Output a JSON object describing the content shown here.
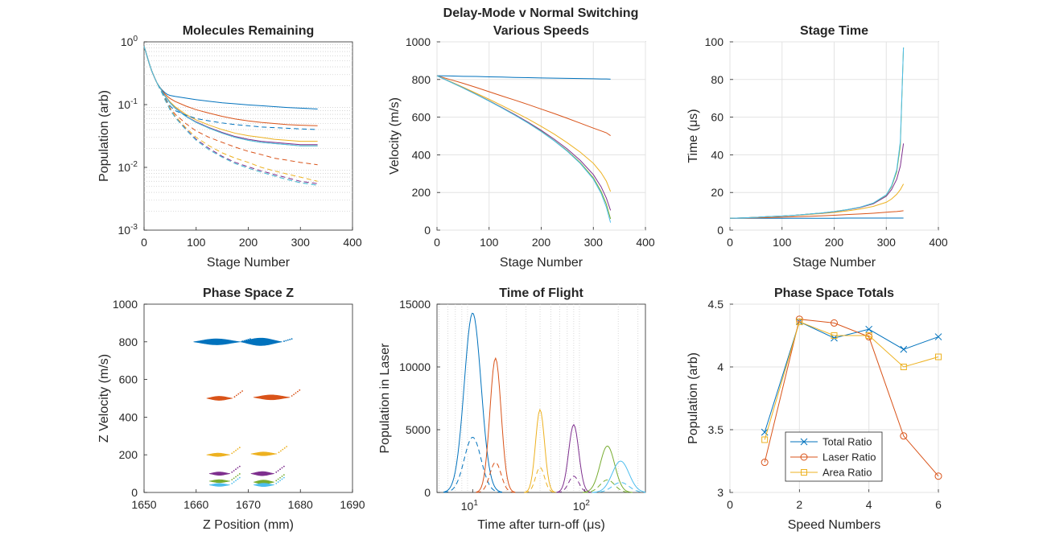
{
  "figure": {
    "suptitle_line1": "Delay-Mode v Normal Switching",
    "suptitle_line2": "Various Speeds"
  },
  "colors": [
    "#0072BD",
    "#D95319",
    "#EDB120",
    "#7E2F8E",
    "#77AC30",
    "#4DBEEE"
  ],
  "chart_data": [
    {
      "id": "molecules",
      "type": "line",
      "title": "Molecules Remaining",
      "xlabel": "Stage Number",
      "ylabel": "Population (arb)",
      "xlim": [
        0,
        400
      ],
      "ylim": [
        0.001,
        1
      ],
      "yscale": "log",
      "grid": "minor-y",
      "xticks": [
        "0",
        "100",
        "200",
        "300",
        "400"
      ],
      "yticks": [
        "10^0",
        "10^-1",
        "10^-2",
        "10^-3"
      ],
      "stage": [
        0,
        5,
        10,
        15,
        20,
        25,
        30,
        35,
        40,
        45,
        50,
        60,
        80,
        100,
        125,
        150,
        175,
        200,
        225,
        250,
        275,
        300,
        333
      ],
      "series": [
        {
          "style": "solid",
          "values": [
            0.85,
            0.62,
            0.45,
            0.34,
            0.27,
            0.22,
            0.19,
            0.17,
            0.155,
            0.145,
            0.14,
            0.135,
            0.127,
            0.12,
            0.113,
            0.107,
            0.103,
            0.099,
            0.096,
            0.093,
            0.09,
            0.088,
            0.085
          ]
        },
        {
          "style": "solid",
          "values": [
            0.85,
            0.62,
            0.45,
            0.34,
            0.27,
            0.22,
            0.19,
            0.165,
            0.148,
            0.135,
            0.125,
            0.112,
            0.095,
            0.083,
            0.073,
            0.065,
            0.059,
            0.055,
            0.052,
            0.05,
            0.048,
            0.047,
            0.046
          ]
        },
        {
          "style": "solid",
          "values": [
            0.85,
            0.62,
            0.45,
            0.34,
            0.27,
            0.22,
            0.19,
            0.16,
            0.14,
            0.125,
            0.11,
            0.092,
            0.07,
            0.057,
            0.047,
            0.04,
            0.035,
            0.032,
            0.03,
            0.028,
            0.027,
            0.026,
            0.026
          ]
        },
        {
          "style": "solid",
          "values": [
            0.85,
            0.62,
            0.45,
            0.34,
            0.27,
            0.22,
            0.19,
            0.16,
            0.138,
            0.122,
            0.107,
            0.088,
            0.066,
            0.053,
            0.043,
            0.036,
            0.031,
            0.028,
            0.026,
            0.025,
            0.024,
            0.023,
            0.023
          ]
        },
        {
          "style": "solid",
          "values": [
            0.85,
            0.62,
            0.45,
            0.34,
            0.27,
            0.22,
            0.19,
            0.16,
            0.137,
            0.121,
            0.106,
            0.087,
            0.065,
            0.052,
            0.042,
            0.035,
            0.03,
            0.027,
            0.025,
            0.024,
            0.023,
            0.022,
            0.022
          ]
        },
        {
          "style": "solid",
          "values": [
            0.85,
            0.62,
            0.45,
            0.34,
            0.27,
            0.22,
            0.19,
            0.16,
            0.137,
            0.121,
            0.106,
            0.087,
            0.065,
            0.052,
            0.042,
            0.035,
            0.03,
            0.027,
            0.025,
            0.024,
            0.023,
            0.022,
            0.022
          ]
        },
        {
          "style": "dashed",
          "values": [
            0.85,
            0.62,
            0.45,
            0.34,
            0.27,
            0.22,
            0.185,
            0.155,
            0.13,
            0.11,
            0.095,
            0.08,
            0.068,
            0.06,
            0.055,
            0.051,
            0.048,
            0.046,
            0.044,
            0.043,
            0.042,
            0.041,
            0.04
          ]
        },
        {
          "style": "dashed",
          "values": [
            0.85,
            0.62,
            0.45,
            0.34,
            0.27,
            0.22,
            0.18,
            0.15,
            0.125,
            0.105,
            0.088,
            0.07,
            0.05,
            0.038,
            0.03,
            0.025,
            0.021,
            0.018,
            0.016,
            0.014,
            0.013,
            0.012,
            0.011
          ]
        },
        {
          "style": "dashed",
          "values": [
            0.85,
            0.62,
            0.45,
            0.34,
            0.27,
            0.22,
            0.18,
            0.15,
            0.122,
            0.102,
            0.085,
            0.065,
            0.043,
            0.03,
            0.022,
            0.017,
            0.014,
            0.012,
            0.01,
            0.0088,
            0.0078,
            0.007,
            0.006
          ]
        },
        {
          "style": "dashed",
          "values": [
            0.85,
            0.62,
            0.45,
            0.34,
            0.27,
            0.22,
            0.18,
            0.15,
            0.12,
            0.1,
            0.083,
            0.063,
            0.041,
            0.028,
            0.02,
            0.015,
            0.012,
            0.0102,
            0.0088,
            0.0077,
            0.0068,
            0.006,
            0.0055
          ]
        },
        {
          "style": "dashed",
          "values": [
            0.85,
            0.62,
            0.45,
            0.34,
            0.27,
            0.22,
            0.18,
            0.15,
            0.12,
            0.1,
            0.082,
            0.062,
            0.04,
            0.027,
            0.019,
            0.0145,
            0.0115,
            0.0097,
            0.0084,
            0.0073,
            0.0064,
            0.0057,
            0.0052
          ]
        },
        {
          "style": "dashed",
          "values": [
            0.85,
            0.62,
            0.45,
            0.34,
            0.27,
            0.22,
            0.18,
            0.15,
            0.12,
            0.1,
            0.082,
            0.062,
            0.04,
            0.027,
            0.019,
            0.0145,
            0.0115,
            0.0097,
            0.0084,
            0.0073,
            0.0064,
            0.0057,
            0.0052
          ]
        }
      ]
    },
    {
      "id": "velocity",
      "type": "line",
      "title": "Delay-Mode v Normal Switching",
      "xlabel": "Stage Number",
      "ylabel": "Velocity (m/s)",
      "xlim": [
        0,
        400
      ],
      "ylim": [
        0,
        1000
      ],
      "grid": true,
      "xticks": [
        0,
        100,
        200,
        300,
        400
      ],
      "yticks": [
        0,
        200,
        400,
        600,
        800,
        1000
      ],
      "stage": [
        0,
        25,
        50,
        75,
        100,
        125,
        150,
        175,
        200,
        225,
        250,
        275,
        300,
        315,
        325,
        333
      ],
      "series": [
        {
          "values": [
            820,
            819,
            817,
            816,
            814,
            813,
            811,
            810,
            808,
            807,
            806,
            805,
            804,
            803,
            803,
            802
          ]
        },
        {
          "values": [
            820,
            800,
            780,
            758,
            735,
            712,
            690,
            667,
            643,
            619,
            594,
            568,
            542,
            527,
            517,
            502
          ]
        },
        {
          "values": [
            820,
            790,
            759,
            727,
            695,
            661,
            626,
            590,
            551,
            510,
            464,
            414,
            355,
            305,
            260,
            205
          ]
        },
        {
          "values": [
            820,
            788,
            756,
            722,
            687,
            651,
            613,
            573,
            530,
            483,
            431,
            370,
            295,
            230,
            170,
            105
          ]
        },
        {
          "values": [
            820,
            788,
            755,
            721,
            686,
            649,
            610,
            569,
            525,
            476,
            422,
            358,
            278,
            205,
            138,
            60
          ]
        },
        {
          "values": [
            820,
            788,
            755,
            721,
            685,
            648,
            609,
            568,
            523,
            474,
            419,
            354,
            271,
            195,
            122,
            40
          ]
        }
      ]
    },
    {
      "id": "stagetime",
      "type": "line",
      "title": "Stage Time",
      "xlabel": "Stage Number",
      "ylabel": "Time (μs)",
      "xlim": [
        0,
        400
      ],
      "ylim": [
        0,
        100
      ],
      "grid": true,
      "xticks": [
        0,
        100,
        200,
        300,
        400
      ],
      "yticks": [
        0,
        20,
        40,
        60,
        80,
        100
      ],
      "stage": [
        0,
        25,
        50,
        75,
        100,
        125,
        150,
        175,
        200,
        225,
        250,
        275,
        300,
        310,
        320,
        327,
        333
      ],
      "series": [
        {
          "values": [
            6.3,
            6.3,
            6.3,
            6.3,
            6.3,
            6.3,
            6.3,
            6.3,
            6.3,
            6.4,
            6.4,
            6.4,
            6.4,
            6.4,
            6.4,
            6.4,
            6.4
          ]
        },
        {
          "values": [
            6.3,
            6.4,
            6.5,
            6.7,
            6.9,
            7.1,
            7.3,
            7.6,
            7.9,
            8.3,
            8.6,
            9.0,
            9.5,
            9.7,
            9.9,
            10.1,
            10.3
          ]
        },
        {
          "values": [
            6.3,
            6.5,
            6.8,
            7.1,
            7.4,
            7.8,
            8.3,
            8.8,
            9.4,
            10.2,
            11.2,
            12.6,
            14.8,
            16.5,
            19,
            21.5,
            24.5
          ]
        },
        {
          "values": [
            6.3,
            6.5,
            6.8,
            7.2,
            7.5,
            7.9,
            8.5,
            9.0,
            9.8,
            10.8,
            12.0,
            14.0,
            18.0,
            21.5,
            27,
            34,
            46
          ]
        },
        {
          "values": [
            6.3,
            6.5,
            6.8,
            7.2,
            7.5,
            7.9,
            8.5,
            9.1,
            9.9,
            10.9,
            12.2,
            14.3,
            18.6,
            23,
            31,
            45,
            97
          ]
        },
        {
          "values": [
            6.3,
            6.5,
            6.8,
            7.2,
            7.5,
            7.9,
            8.5,
            9.1,
            9.9,
            10.9,
            12.2,
            14.4,
            18.8,
            23.5,
            32,
            47,
            97
          ]
        }
      ]
    },
    {
      "id": "phasez",
      "type": "scatter",
      "title": "Phase Space Z",
      "xlabel": "Z Position (mm)",
      "ylabel": "Z Velocity (m/s)",
      "xlim": [
        1650,
        1690
      ],
      "ylim": [
        0,
        1000
      ],
      "xticks": [
        1650,
        1660,
        1670,
        1680,
        1690
      ],
      "yticks": [
        0,
        200,
        400,
        600,
        800,
        1000
      ],
      "blobs": [
        {
          "series": 0,
          "x0": 1659.5,
          "x1": 1668.5,
          "v": 800,
          "h": 32
        },
        {
          "series": 0,
          "x0": 1668.5,
          "x1": 1676.5,
          "v": 800,
          "h": 40
        },
        {
          "series": 1,
          "x0": 1662.0,
          "x1": 1667.0,
          "v": 500,
          "h": 22
        },
        {
          "series": 1,
          "x0": 1671.0,
          "x1": 1678.0,
          "v": 505,
          "h": 26
        },
        {
          "series": 2,
          "x0": 1662.0,
          "x1": 1666.5,
          "v": 200,
          "h": 18
        },
        {
          "series": 2,
          "x0": 1670.5,
          "x1": 1675.5,
          "v": 205,
          "h": 20
        },
        {
          "series": 3,
          "x0": 1662.5,
          "x1": 1666.5,
          "v": 100,
          "h": 18
        },
        {
          "series": 3,
          "x0": 1670.5,
          "x1": 1675.0,
          "v": 100,
          "h": 22
        },
        {
          "series": 4,
          "x0": 1662.5,
          "x1": 1666.5,
          "v": 60,
          "h": 16
        },
        {
          "series": 4,
          "x0": 1671.0,
          "x1": 1675.0,
          "v": 55,
          "h": 22
        },
        {
          "series": 5,
          "x0": 1662.5,
          "x1": 1666.5,
          "v": 40,
          "h": 16
        },
        {
          "series": 5,
          "x0": 1671.0,
          "x1": 1675.0,
          "v": 40,
          "h": 18
        }
      ]
    },
    {
      "id": "tof",
      "type": "line",
      "title": "Time of Flight",
      "xlabel": "Time after turn-off (μs)",
      "ylabel": "Population in Laser",
      "xscale": "log",
      "xlim": [
        4.8,
        350
      ],
      "ylim": [
        0,
        15000
      ],
      "grid": "minor-x",
      "yticks": [
        0,
        5000,
        10000,
        15000
      ],
      "xticks": [
        "10^1",
        "10^2"
      ],
      "peaks": [
        {
          "series": 0,
          "center": 10,
          "width": 0.075,
          "solid": 14300,
          "dashed": 4400
        },
        {
          "series": 1,
          "center": 16,
          "width": 0.05,
          "solid": 10700,
          "dashed": 2400
        },
        {
          "series": 2,
          "center": 40,
          "width": 0.04,
          "solid": 6600,
          "dashed": 2000
        },
        {
          "series": 3,
          "center": 80,
          "width": 0.045,
          "solid": 5400,
          "dashed": 1300
        },
        {
          "series": 4,
          "center": 160,
          "width": 0.065,
          "solid": 3700,
          "dashed": 1000
        },
        {
          "series": 5,
          "center": 210,
          "width": 0.075,
          "solid": 2500,
          "dashed": 800
        }
      ]
    },
    {
      "id": "totals",
      "type": "line",
      "title": "Phase Space Totals",
      "xlabel": "Speed Numbers",
      "ylabel": "Population (arb)",
      "xlim": [
        0,
        6
      ],
      "ylim": [
        3,
        4.5
      ],
      "grid": true,
      "xticks": [
        0,
        2,
        4,
        6
      ],
      "yticks": [
        "3",
        "3.5",
        "4",
        "4.5"
      ],
      "x": [
        1,
        2,
        3,
        4,
        5,
        6
      ],
      "legend_position": "lower-left",
      "series": [
        {
          "name": "Total Ratio",
          "marker": "x",
          "values": [
            3.48,
            4.36,
            4.23,
            4.3,
            4.14,
            4.24
          ]
        },
        {
          "name": "Laser Ratio",
          "marker": "o",
          "values": [
            3.24,
            4.38,
            4.35,
            4.24,
            3.45,
            3.13
          ]
        },
        {
          "name": "Area Ratio",
          "marker": "s",
          "values": [
            3.42,
            4.36,
            4.25,
            4.25,
            4.0,
            4.08
          ]
        }
      ]
    }
  ]
}
